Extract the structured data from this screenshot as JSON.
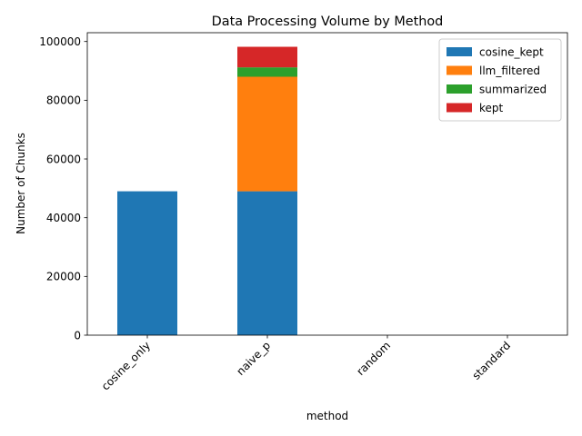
{
  "chart_data": {
    "type": "bar",
    "stacked": true,
    "title": "Data Processing Volume by Method",
    "xlabel": "method",
    "ylabel": "Number of Chunks",
    "categories": [
      "cosine_only",
      "naive_p",
      "random",
      "standard"
    ],
    "series": [
      {
        "name": "cosine_kept",
        "color": "#1f77b4",
        "values": [
          49000,
          49000,
          0,
          0
        ]
      },
      {
        "name": "llm_filtered",
        "color": "#ff7f0e",
        "values": [
          0,
          39000,
          0,
          0
        ]
      },
      {
        "name": "summarized",
        "color": "#2ca02c",
        "values": [
          0,
          3200,
          0,
          0
        ]
      },
      {
        "name": "kept",
        "color": "#d62728",
        "values": [
          0,
          7000,
          0,
          0
        ]
      }
    ],
    "yticks": [
      0,
      20000,
      40000,
      60000,
      80000,
      100000
    ],
    "ylim": [
      0,
      103000
    ],
    "grid": false,
    "legend_position": "top-right"
  }
}
